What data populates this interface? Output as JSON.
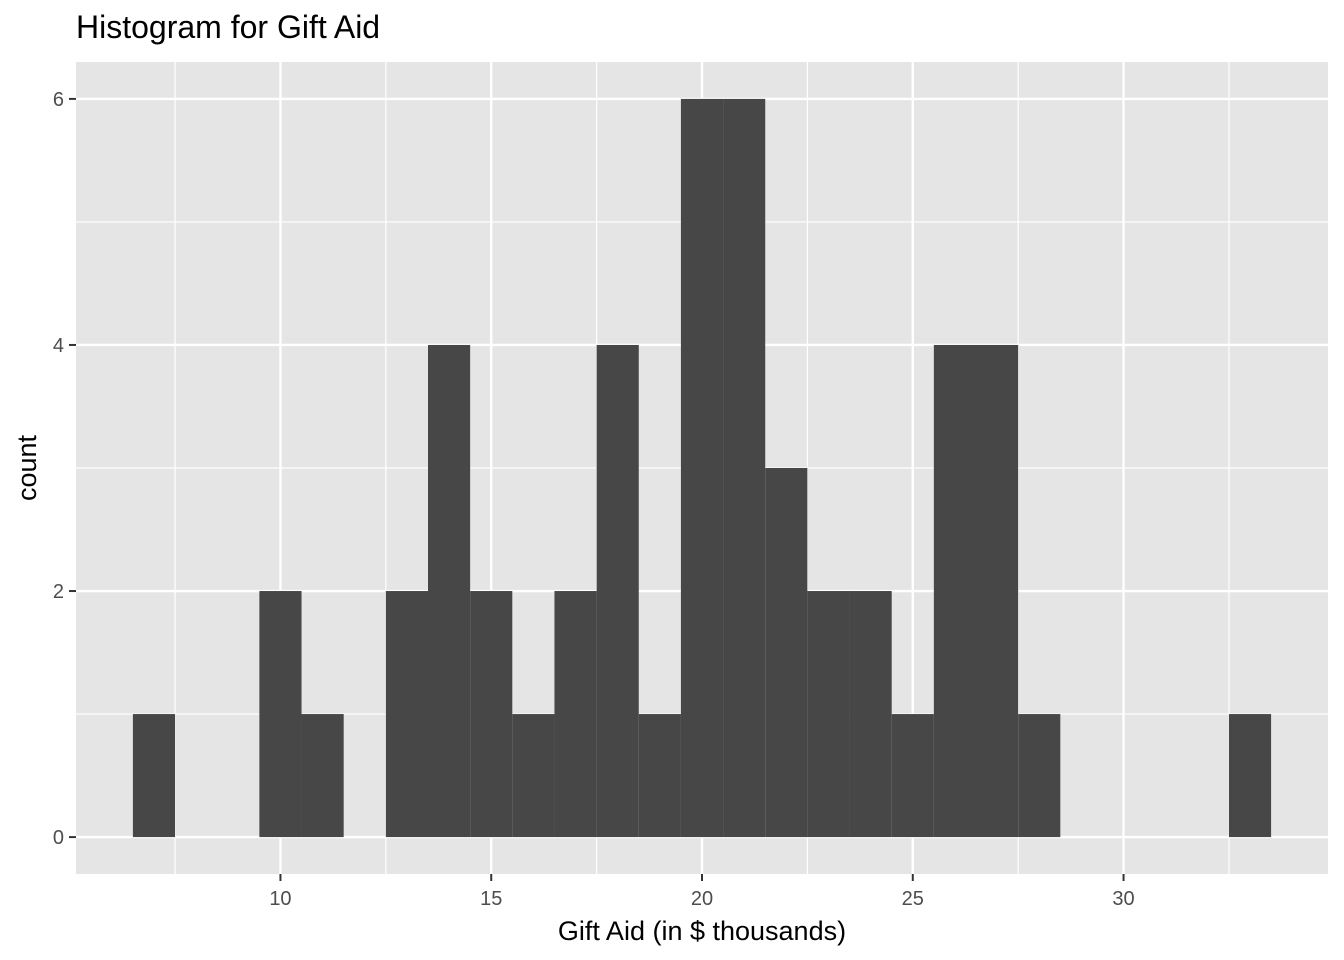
{
  "chart_data": {
    "type": "bar",
    "subtype": "histogram",
    "title": "Histogram for Gift Aid",
    "xlabel": "Gift Aid (in $ thousands)",
    "ylabel": "count",
    "bin_width": 1,
    "bins": [
      {
        "start": 6.5,
        "end": 7.5,
        "count": 1
      },
      {
        "start": 7.5,
        "end": 8.5,
        "count": 0
      },
      {
        "start": 8.5,
        "end": 9.5,
        "count": 0
      },
      {
        "start": 9.5,
        "end": 10.5,
        "count": 2
      },
      {
        "start": 10.5,
        "end": 11.5,
        "count": 1
      },
      {
        "start": 11.5,
        "end": 12.5,
        "count": 0
      },
      {
        "start": 12.5,
        "end": 13.5,
        "count": 2
      },
      {
        "start": 13.5,
        "end": 14.5,
        "count": 4
      },
      {
        "start": 14.5,
        "end": 15.5,
        "count": 2
      },
      {
        "start": 15.5,
        "end": 16.5,
        "count": 1
      },
      {
        "start": 16.5,
        "end": 17.5,
        "count": 2
      },
      {
        "start": 17.5,
        "end": 18.5,
        "count": 4
      },
      {
        "start": 18.5,
        "end": 19.5,
        "count": 1
      },
      {
        "start": 19.5,
        "end": 20.5,
        "count": 6
      },
      {
        "start": 20.5,
        "end": 21.5,
        "count": 6
      },
      {
        "start": 21.5,
        "end": 22.5,
        "count": 3
      },
      {
        "start": 22.5,
        "end": 23.5,
        "count": 2
      },
      {
        "start": 23.5,
        "end": 24.5,
        "count": 2
      },
      {
        "start": 24.5,
        "end": 25.5,
        "count": 1
      },
      {
        "start": 25.5,
        "end": 26.5,
        "count": 4
      },
      {
        "start": 26.5,
        "end": 27.5,
        "count": 4
      },
      {
        "start": 27.5,
        "end": 28.5,
        "count": 1
      },
      {
        "start": 28.5,
        "end": 29.5,
        "count": 0
      },
      {
        "start": 29.5,
        "end": 30.5,
        "count": 0
      },
      {
        "start": 30.5,
        "end": 31.5,
        "count": 0
      },
      {
        "start": 31.5,
        "end": 32.5,
        "count": 0
      },
      {
        "start": 32.5,
        "end": 33.5,
        "count": 1
      }
    ],
    "x_ticks": [
      10,
      15,
      20,
      25,
      30
    ],
    "y_ticks": [
      0,
      2,
      4,
      6
    ],
    "xlim": [
      5.15,
      34.85
    ],
    "ylim": [
      -0.3,
      6.3
    ],
    "grid": true,
    "legend": "none",
    "colors": {
      "bar_fill": "#474747",
      "panel_background": "#e5e5e5",
      "grid_major": "#ffffff",
      "tick_text": "#4d4d4d"
    }
  }
}
